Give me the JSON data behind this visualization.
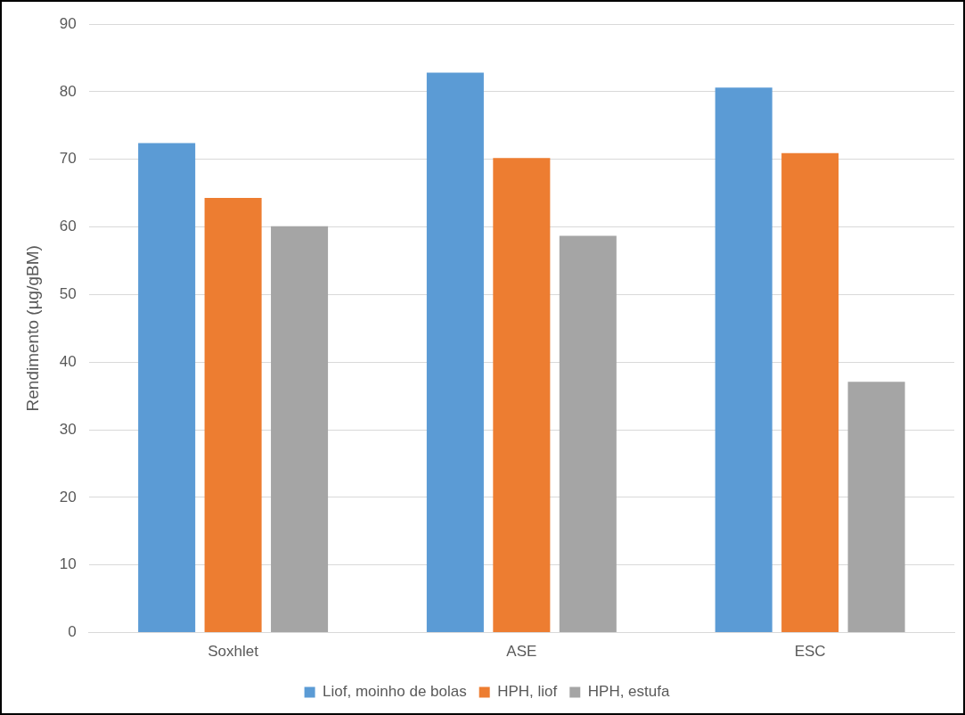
{
  "chart_data": {
    "type": "bar",
    "ylabel": "Rendimento (µg/gBM)",
    "categories": [
      "Soxhlet",
      "ASE",
      "ESC"
    ],
    "series": [
      {
        "name": "Liof, moinho de bolas",
        "color": "#5b9bd5",
        "values": [
          72.4,
          82.8,
          80.6
        ]
      },
      {
        "name": "HPH, liof",
        "color": "#ed7d31",
        "values": [
          64.3,
          70.2,
          70.9
        ]
      },
      {
        "name": "HPH, estufa",
        "color": "#a5a5a5",
        "values": [
          60.1,
          58.7,
          37.1
        ]
      }
    ],
    "ylim": [
      0,
      90
    ],
    "yticks": [
      0,
      10,
      20,
      30,
      40,
      50,
      60,
      70,
      80,
      90
    ],
    "grid": "y",
    "legend": "bottom"
  }
}
